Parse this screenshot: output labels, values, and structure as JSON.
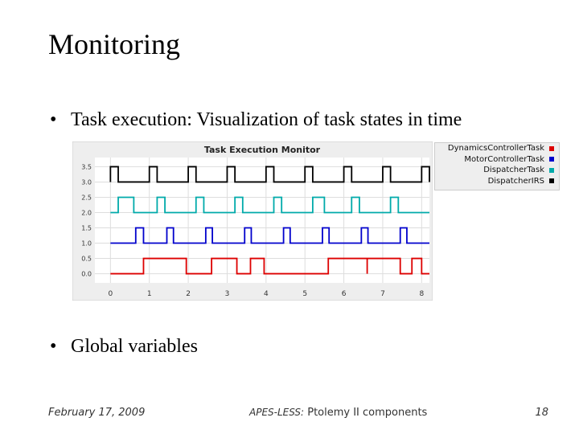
{
  "slide": {
    "title": "Monitoring",
    "bullets": [
      "Task execution: Visualization of task states in time",
      "Global variables"
    ],
    "footer": {
      "date": "February 17, 2009",
      "center_italic": "APES-LESS:",
      "center_plain": " Ptolemy II components",
      "page": "18"
    }
  },
  "chart_data": {
    "type": "line",
    "title": "Task Execution Monitor",
    "xlabel": "",
    "ylabel": "",
    "xlim": [
      -0.4,
      8.2
    ],
    "ylim": [
      -0.3,
      3.8
    ],
    "xticks": [
      0,
      1,
      2,
      3,
      4,
      5,
      6,
      7,
      8
    ],
    "yticks": [
      3.5,
      3.0,
      2.5,
      2.0,
      1.5,
      1.0,
      0.5,
      0.0
    ],
    "ytick_labels": [
      "3.5",
      "3.0",
      "2.5",
      "2.0",
      "1.5",
      "1.0",
      "0.5",
      "0.0"
    ],
    "grid": true,
    "legend_position": "top-right outside",
    "series": [
      {
        "name": "DynamicsControllerTask",
        "color": "#dd0000",
        "low": 0.0,
        "high": 0.5,
        "pulses": [
          [
            0.85,
            1.95
          ],
          [
            2.6,
            3.25
          ],
          [
            3.95,
            3.6
          ],
          [
            5.6,
            6.6
          ],
          [
            6.6,
            7.45
          ],
          [
            7.75,
            8.0
          ]
        ]
      },
      {
        "name": "MotorControllerTask",
        "color": "#0000cc",
        "low": 1.0,
        "high": 1.5,
        "pulses": [
          [
            0.65,
            0.85
          ],
          [
            1.45,
            1.62
          ],
          [
            2.45,
            2.62
          ],
          [
            3.45,
            3.62
          ],
          [
            4.45,
            4.62
          ],
          [
            5.45,
            5.62
          ],
          [
            6.45,
            6.62
          ],
          [
            7.45,
            7.62
          ]
        ]
      },
      {
        "name": "DispatcherTask",
        "color": "#00aaaa",
        "low": 2.0,
        "high": 2.5,
        "pulses": [
          [
            0.2,
            0.6
          ],
          [
            1.2,
            1.4
          ],
          [
            2.2,
            2.4
          ],
          [
            3.2,
            3.4
          ],
          [
            4.2,
            4.4
          ],
          [
            5.2,
            5.5
          ],
          [
            6.2,
            6.4
          ],
          [
            7.2,
            7.4
          ]
        ]
      },
      {
        "name": "DispatcherIRS",
        "color": "#000000",
        "low": 3.0,
        "high": 3.5,
        "pulses": [
          [
            0.0,
            0.2
          ],
          [
            1.0,
            1.2
          ],
          [
            2.0,
            2.2
          ],
          [
            3.0,
            3.2
          ],
          [
            4.0,
            4.2
          ],
          [
            5.0,
            5.2
          ],
          [
            6.0,
            6.2
          ],
          [
            7.0,
            7.2
          ],
          [
            8.0,
            8.2
          ]
        ]
      }
    ]
  }
}
